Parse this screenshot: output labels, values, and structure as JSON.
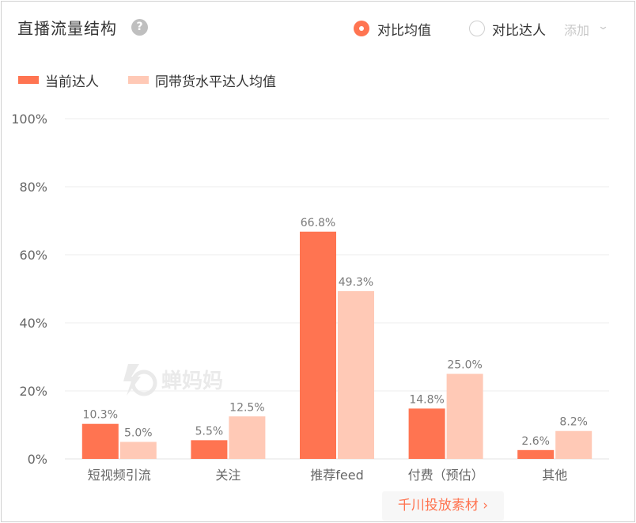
{
  "header": {
    "title": "直播流量结构",
    "help_icon": "question-icon",
    "compare_avg_label": "对比均值",
    "compare_creator_label": "对比达人",
    "add_label": "添加",
    "add_chevron": "chevron-down-icon"
  },
  "legend": [
    {
      "label": "当前达人",
      "color": "#ff7451"
    },
    {
      "label": "同带货水平达人均值",
      "color": "#ffc9b6"
    }
  ],
  "watermark": {
    "text": "蝉妈妈",
    "icon": "chanmama-logo-icon"
  },
  "footer": {
    "button_label": "千川投放素材 ›"
  },
  "chart_data": {
    "type": "bar",
    "categories": [
      "短视频引流",
      "关注",
      "推荐feed",
      "付费（预估）",
      "其他"
    ],
    "series": [
      {
        "name": "当前达人",
        "values": [
          10.3,
          5.5,
          66.8,
          14.8,
          2.6
        ],
        "labels": [
          "10.3%",
          "5.5%",
          "66.8%",
          "14.8%",
          "2.6%"
        ],
        "color": "#ff7451"
      },
      {
        "name": "同带货水平达人均值",
        "values": [
          5.0,
          12.5,
          49.3,
          25.0,
          8.2
        ],
        "labels": [
          "5.0%",
          "12.5%",
          "49.3%",
          "25.0%",
          "8.2%"
        ],
        "color": "#ffc9b6"
      }
    ],
    "yticks": [
      "0%",
      "20%",
      "40%",
      "60%",
      "80%",
      "100%"
    ],
    "ylim": [
      0,
      100
    ],
    "grid": true,
    "legend_position": "top-left",
    "colors": {
      "grid": "#eeeeee",
      "axis": "#e3e3e3",
      "tick_text": "#666666",
      "label_text": "#7a7a7a"
    }
  }
}
